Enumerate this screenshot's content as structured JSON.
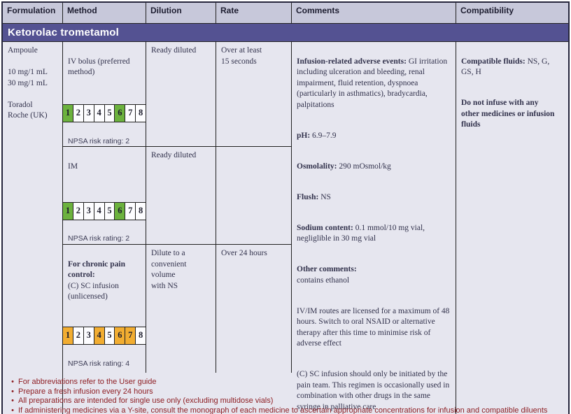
{
  "theme": {
    "banner_bg": "#545292",
    "header_bg": "#c7c8da",
    "body_bg": "#e6e6ef",
    "border_dark": "#26263c",
    "border_thin": "#222222",
    "text_dark": "#32324c",
    "footer_red": "#8e1f24",
    "npsa_green": "#6cb23e",
    "npsa_orange": "#f2ad31"
  },
  "header": {
    "columns": [
      "Formulation",
      "Method",
      "Dilution",
      "Rate",
      "Comments",
      "Compatibility"
    ]
  },
  "drug": {
    "title": "Ketorolac trometamol"
  },
  "formulation": {
    "text": "Ampoule\n\n10 mg/1 mL\n30 mg/1 mL\n\nToradol\nRoche (UK)"
  },
  "rows": [
    {
      "method": "IV bolus (preferred\nmethod)",
      "dilution": "Ready diluted",
      "rate": "Over at least\n15 seconds"
    },
    {
      "method": "IM",
      "dilution": "Ready diluted",
      "rate": ""
    },
    {
      "method_title": "For chronic pain\ncontrol:",
      "method": "(C) SC infusion\n(unlicensed)",
      "dilution": "Dilute to a\nconvenient volume\nwith NS",
      "rate": "Over 24 hours"
    }
  ],
  "npsa": {
    "numbers": [
      "1",
      "2",
      "3",
      "4",
      "5",
      "6",
      "7",
      "8"
    ],
    "strips": [
      {
        "rating": "NPSA risk rating: 2",
        "highlighted": [
          1,
          6
        ],
        "color": "#6cb23e"
      },
      {
        "rating": "NPSA risk rating: 2",
        "highlighted": [
          1,
          6
        ],
        "color": "#6cb23e"
      },
      {
        "rating": "NPSA risk rating: 4",
        "highlighted": [
          1,
          4,
          6,
          7
        ],
        "color": "#f2ad31"
      }
    ]
  },
  "comments": {
    "paragraphs": [
      {
        "label": "Infusion-related adverse events:",
        "text": " GI irritation including ulceration and bleeding, renal impairment, fluid retention, dyspnoea (particularly in asthmatics), bradycardia, palpitations"
      },
      {
        "label": "pH:",
        "text": " 6.9–7.9"
      },
      {
        "label": "Osmolality:",
        "text": " 290 mOsmol/kg"
      },
      {
        "label": "Flush:",
        "text": " NS"
      },
      {
        "label": "Sodium content:",
        "text": " 0.1 mmol/10 mg vial, negliglible in 30 mg vial"
      },
      {
        "label": "Other comments:",
        "text": "\ncontains ethanol"
      },
      {
        "label": "",
        "text": "IV/IM routes are licensed for a maximum of 48 hours. Switch to oral NSAID or alternative therapy after this time to minimise risk of adverse effect"
      },
      {
        "label": "",
        "text": "(C) SC infusion should only be initiated by the pain team. This regimen is occasionally used in combination with other drugs in the same syringe in palliative care"
      }
    ]
  },
  "compatibility": {
    "paragraphs": [
      {
        "label": "Compatible fluids:",
        "text": " NS, G, GS, H"
      },
      {
        "label": "",
        "text": "Do not infuse with any\nother medicines or infusion\nfluids"
      }
    ]
  },
  "footer": {
    "bullets": [
      "For abbreviations refer to the User guide",
      "Prepare a fresh infusion every 24 hours",
      "All preparations are intended for single use only (excluding multidose vials)",
      "If administering medicines via a Y-site, consult the monograph of each medicine to ascertain appropriate concentrations for infusion and compatible diluents"
    ]
  }
}
